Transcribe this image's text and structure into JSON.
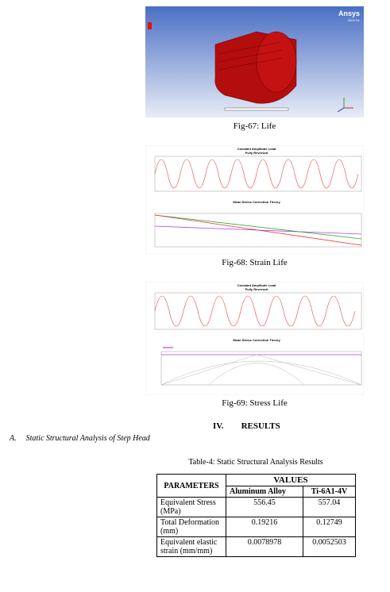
{
  "figures": [
    {
      "caption": "Fig-67: Life",
      "brand": "Ansys",
      "version": "2023 R1"
    },
    {
      "caption": "Fig-68: Strain Life",
      "top_title": "Constant Amplitude Load",
      "top_subtitle": "Fully Reversed",
      "bottom_title": "Mean Stress Correction Theory"
    },
    {
      "caption": "Fig-69: Stress Life",
      "top_title": "Constant Amplitude Load",
      "top_subtitle": "Fully Reversed",
      "bottom_title": "Mean Stress Correction Theory"
    }
  ],
  "section": {
    "number": "IV.",
    "title": "RESULTS"
  },
  "subsection": {
    "number": "A.",
    "title": "Static Structural Analysis of Step Head"
  },
  "table": {
    "caption": "Table-4: Static Structural Analysis Results",
    "header": {
      "parameters": "PARAMETERS",
      "values": "VALUES",
      "columns": [
        "Aluminum Alloy",
        "Ti-6A1-4V"
      ]
    },
    "rows": [
      [
        "Equivalent Stress (MPa)",
        "556.45",
        "557.04"
      ],
      [
        "Total Deformation (mm)",
        "0.19216",
        "0.12749"
      ],
      [
        "Equivalent elastic strain (mm/mm)",
        "0.0078978",
        "0.0052503"
      ]
    ]
  }
}
